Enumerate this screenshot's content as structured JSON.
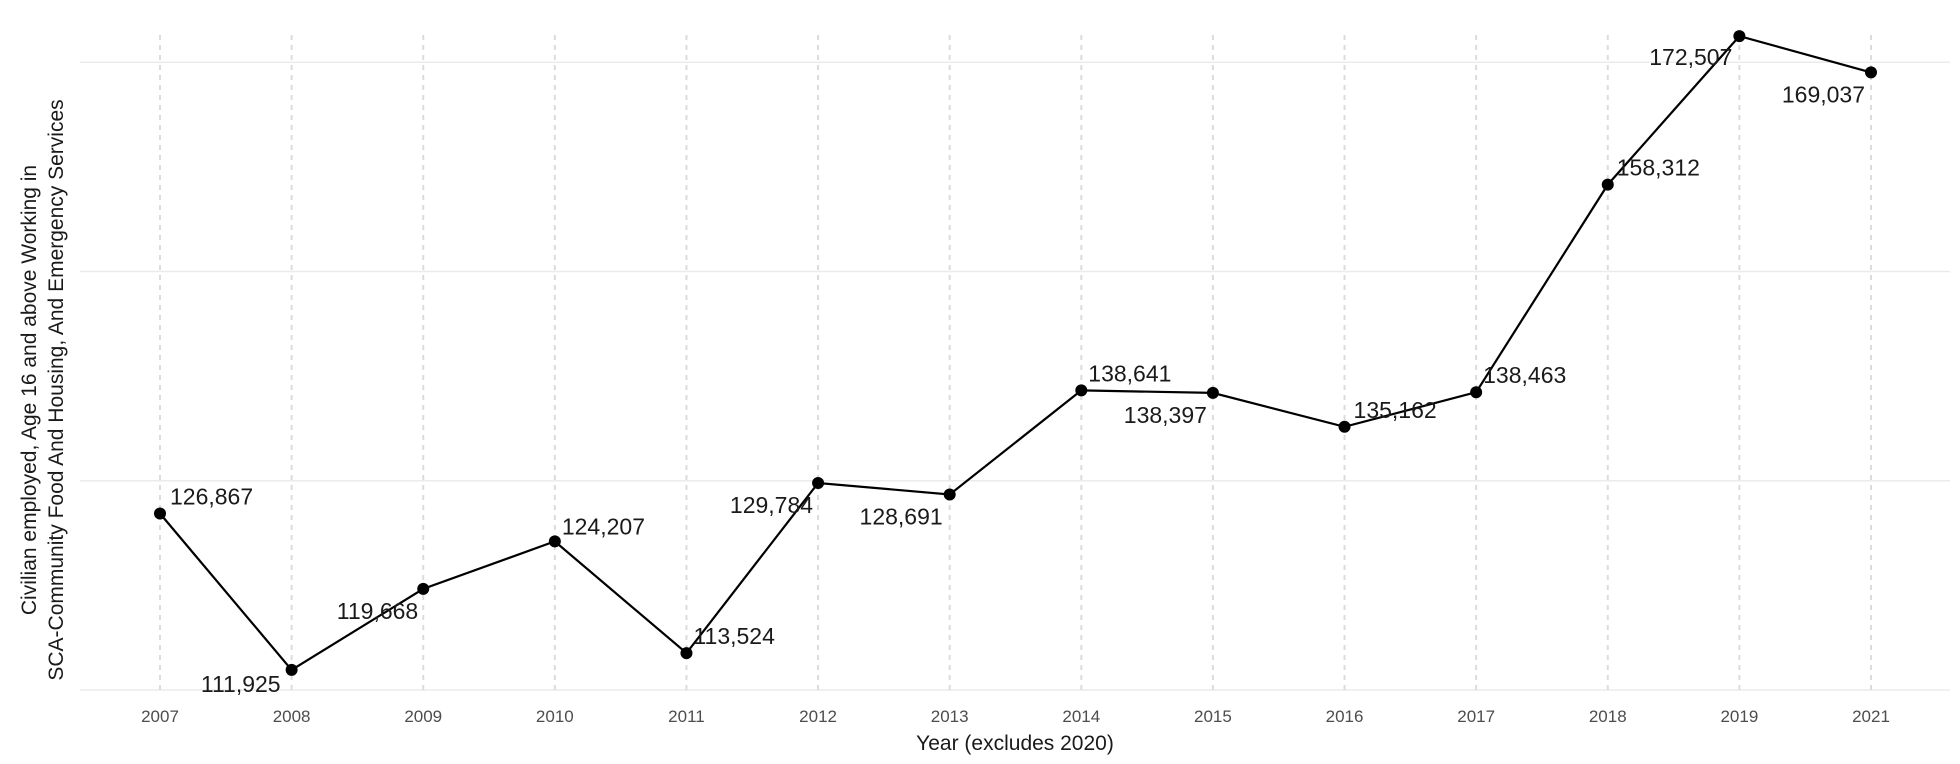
{
  "chart_data": {
    "type": "line",
    "title": "",
    "xlabel": "Year (excludes 2020)",
    "ylabel": "Civilian employed, Age 16 and above Working in SCA-Community Food And Housing, And Emergency Services",
    "ylabel_lines": [
      "Civilian employed, Age 16 and above Working in",
      "SCA-Community Food And Housing, And Emergency Services"
    ],
    "categories": [
      "2007",
      "2008",
      "2009",
      "2010",
      "2011",
      "2012",
      "2013",
      "2014",
      "2015",
      "2016",
      "2017",
      "2018",
      "2019",
      "2021"
    ],
    "values": [
      126867,
      111925,
      119668,
      124207,
      113524,
      129784,
      128691,
      138641,
      138397,
      135162,
      138463,
      158312,
      172507,
      169037
    ],
    "data_labels": [
      "126,867",
      "111,925",
      "119,668",
      "124,207",
      "113,524",
      "129,784",
      "128,691",
      "138,641",
      "138,397",
      "135,162",
      "138,463",
      "158,312",
      "172,507",
      "169,037"
    ],
    "ylim": [
      110000,
      175000
    ],
    "y_gridlines": [
      110000,
      130000,
      150000,
      170000
    ],
    "y_tick_labels_shown": false,
    "grid": true,
    "legend": "none"
  }
}
